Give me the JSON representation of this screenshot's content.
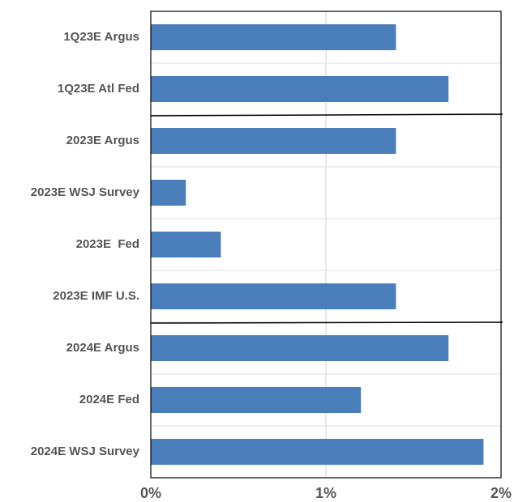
{
  "chart_data": {
    "type": "bar",
    "orientation": "horizontal",
    "categories": [
      "1Q23E Argus",
      "1Q23E Atl Fed",
      "2023E Argus",
      "2023E WSJ Survey",
      "2023E  Fed",
      "2023E IMF U.S.",
      "2024E Argus",
      "2024E Fed",
      "2024E WSJ Survey"
    ],
    "values": [
      1.4,
      1.7,
      1.4,
      0.2,
      0.4,
      1.4,
      1.7,
      1.2,
      1.9
    ],
    "color": "#4a7ebb",
    "xlim": [
      0,
      2
    ],
    "xticks": [
      {
        "value": 0,
        "label": "0%"
      },
      {
        "value": 1,
        "label": "1%"
      },
      {
        "value": 2,
        "label": "2%"
      }
    ],
    "grid": true
  }
}
